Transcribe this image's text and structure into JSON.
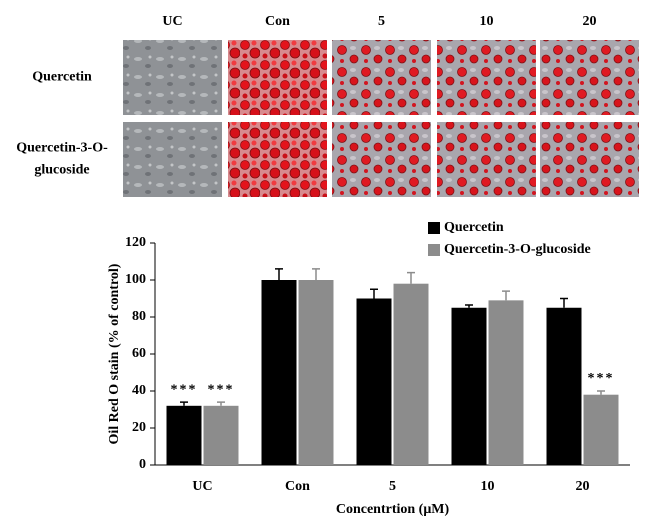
{
  "panel": {
    "columns": [
      "UC",
      "Con",
      "5",
      "10",
      "20"
    ],
    "rows": [
      {
        "lines": [
          "Quercetin"
        ]
      },
      {
        "lines": [
          "Quercetin-3-O-",
          "glucoside"
        ]
      }
    ]
  },
  "chart_data": {
    "type": "bar",
    "x_label": "Concentrtion (μM)",
    "y_label": "Oil Red O stain (% of control)",
    "categories": [
      "UC",
      "Con",
      "5",
      "10",
      "20"
    ],
    "series": [
      {
        "name": "Quercetin",
        "color": "#000000",
        "values": [
          32,
          100,
          90,
          85,
          85
        ],
        "errors": [
          2,
          6,
          5,
          1.5,
          5
        ]
      },
      {
        "name": "Quercetin-3-O-glucoside",
        "color": "#8c8c8c",
        "values": [
          32,
          100,
          98,
          89,
          38
        ],
        "errors": [
          2,
          6,
          6,
          5,
          2
        ]
      }
    ],
    "annotations": [
      "***",
      "***",
      "***"
    ],
    "ylim": [
      0,
      120
    ],
    "yticks": [
      0,
      20,
      40,
      60,
      80,
      100,
      120
    ],
    "legend": "top-right"
  }
}
